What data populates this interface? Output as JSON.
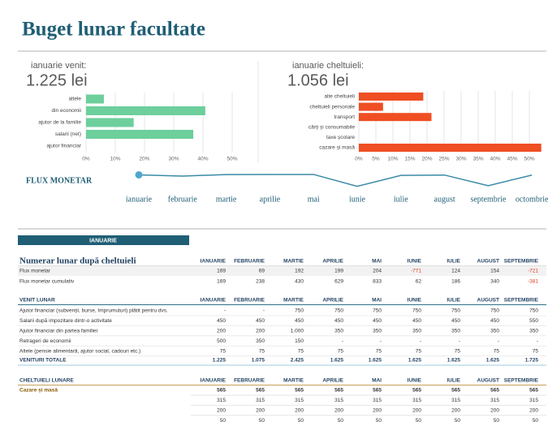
{
  "title": "Buget lunar facultate",
  "chart_data": [
    {
      "type": "bar",
      "label": "ianuarie venit:",
      "total": "1.225 lei",
      "categories": [
        "altele",
        "din economii",
        "ajutor de la familie",
        "salarii (net)",
        "ajutor financiar"
      ],
      "values": [
        6.1,
        40.8,
        16.3,
        36.7,
        0
      ],
      "color": "#6dcf9c",
      "xlim": [
        0,
        50
      ],
      "xticks": [
        {
          "value": 0,
          "label": "0%"
        },
        {
          "value": 10,
          "label": "10%"
        },
        {
          "value": 20,
          "label": "20%"
        },
        {
          "value": 30,
          "label": "30%"
        },
        {
          "value": 40,
          "label": "40%"
        },
        {
          "value": 50,
          "label": "50%"
        }
      ],
      "grid": true
    },
    {
      "type": "bar",
      "label": "ianuarie cheltuieli:",
      "total": "1.056 lei",
      "categories": [
        "alte cheltuieli",
        "cheltuieli personale",
        "transport",
        "cărți și consumabile",
        "taxe școlare",
        "cazare și masă"
      ],
      "values": [
        18.9,
        7.1,
        21.3,
        0,
        0,
        53.5
      ],
      "color": "#f04e23",
      "xlim": [
        0,
        55
      ],
      "xticks": [
        {
          "value": 0,
          "label": "0%"
        },
        {
          "value": 5,
          "label": "5%"
        },
        {
          "value": 10,
          "label": "10%"
        },
        {
          "value": 15,
          "label": "15%"
        },
        {
          "value": 20,
          "label": "20%"
        },
        {
          "value": 25,
          "label": "25%"
        },
        {
          "value": 30,
          "label": "30%"
        },
        {
          "value": 35,
          "label": "35%"
        },
        {
          "value": 40,
          "label": "40%"
        },
        {
          "value": 45,
          "label": "45%"
        },
        {
          "value": 50,
          "label": "50%"
        }
      ],
      "grid": true
    },
    {
      "type": "line",
      "title": "FLUX MONETAR",
      "categories": [
        "ianuarie",
        "februarie",
        "martie",
        "aprilie",
        "mai",
        "iunie",
        "iulie",
        "august",
        "septembrie",
        "octombrie"
      ],
      "values": [
        169,
        69,
        192,
        199,
        204,
        -771,
        124,
        154,
        -721,
        150
      ],
      "color": "#3b8aa6",
      "ylim": [
        -1000,
        400
      ]
    }
  ],
  "tab": "IANUARIE",
  "summary_table": {
    "title": "Numerar lunar după cheltuieli",
    "columns": [
      "IANUARIE",
      "FEBRUARIE",
      "MARTIE",
      "APRILIE",
      "MAI",
      "IUNIE",
      "IULIE",
      "AUGUST",
      "SEPTEMBRIE"
    ],
    "rows": [
      {
        "label": "Flux monetar",
        "cells": [
          "169",
          "69",
          "192",
          "199",
          "204",
          "-771",
          "124",
          "154",
          "-721"
        ]
      },
      {
        "label": "Flux monetar cumulativ",
        "cells": [
          "169",
          "238",
          "430",
          "629",
          "833",
          "62",
          "186",
          "340",
          "-381"
        ]
      }
    ]
  },
  "income_table": {
    "title": "VENIT LUNAR",
    "columns": [
      "IANUARIE",
      "FEBRUARIE",
      "MARTIE",
      "APRILIE",
      "MAI",
      "IUNIE",
      "IULIE",
      "AUGUST",
      "SEPTEMBRIE"
    ],
    "rows": [
      {
        "label": "Ajutor financiar (subvenții, burse, împrumuturi) plătit pentru dvs.",
        "cells": [
          "-",
          "-",
          "750",
          "750",
          "750",
          "750",
          "750",
          "750",
          "750"
        ]
      },
      {
        "label": "Salarii după impozitare dintr-o activitate",
        "cells": [
          "450",
          "450",
          "450",
          "450",
          "450",
          "450",
          "450",
          "450",
          "550"
        ]
      },
      {
        "label": "Ajutor financiar din partea familiei",
        "cells": [
          "200",
          "200",
          "1.000",
          "350",
          "350",
          "350",
          "350",
          "350",
          "350"
        ]
      },
      {
        "label": "Retrageri de economii",
        "cells": [
          "500",
          "350",
          "150",
          "-",
          "-",
          "-",
          "-",
          "-",
          "-"
        ]
      },
      {
        "label": "Altele (pensie alimentară, ajutor social, cadouri etc.)",
        "cells": [
          "75",
          "75",
          "75",
          "75",
          "75",
          "75",
          "75",
          "75",
          "75"
        ]
      }
    ],
    "total": {
      "label": "VENITURI TOTALE",
      "cells": [
        "1.225",
        "1.075",
        "2.425",
        "1.625",
        "1.625",
        "1.625",
        "1.625",
        "1.625",
        "1.725"
      ]
    }
  },
  "expense_table": {
    "title": "CHELTUIELI LUNARE",
    "columns": [
      "IANUARIE",
      "FEBRUARIE",
      "MARTIE",
      "APRILIE",
      "MAI",
      "IUNIE",
      "IULIE",
      "AUGUST",
      "SEPTEMBRIE"
    ],
    "rows": [
      {
        "label": "Cazare și masă",
        "cells": [
          "565",
          "565",
          "565",
          "565",
          "565",
          "565",
          "565",
          "565",
          "565"
        ]
      },
      {
        "cells": [
          "315",
          "315",
          "315",
          "315",
          "315",
          "315",
          "315",
          "315",
          "315"
        ]
      },
      {
        "cells": [
          "200",
          "200",
          "200",
          "200",
          "200",
          "200",
          "200",
          "200",
          "200"
        ]
      },
      {
        "cells": [
          "50",
          "50",
          "50",
          "50",
          "50",
          "50",
          "50",
          "50",
          "50"
        ]
      }
    ]
  }
}
